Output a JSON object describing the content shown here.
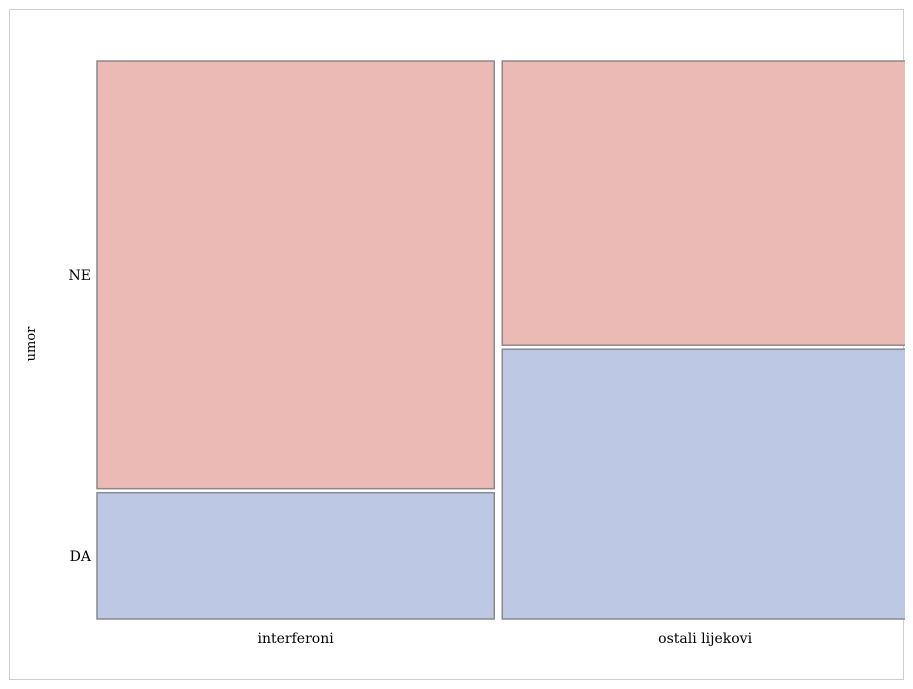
{
  "chart_data": {
    "type": "mosaic",
    "title": "",
    "xlabel": "",
    "ylabel": "umor",
    "x_categories": [
      "interferoni",
      "ostali lijekovi"
    ],
    "y_categories": [
      "DA",
      "NE"
    ],
    "x_proportions": [
      0.4947,
      0.5053
    ],
    "y_proportions": {
      "interferoni": {
        "DA": 0.228,
        "NE": 0.772
      },
      "ostali lijekovi": {
        "DA": 0.487,
        "NE": 0.513
      }
    },
    "colors": {
      "NE": "#ecbab4",
      "DA": "#bdc8e4",
      "border": "#8a8a8a"
    },
    "legend": "none",
    "grid": false
  }
}
